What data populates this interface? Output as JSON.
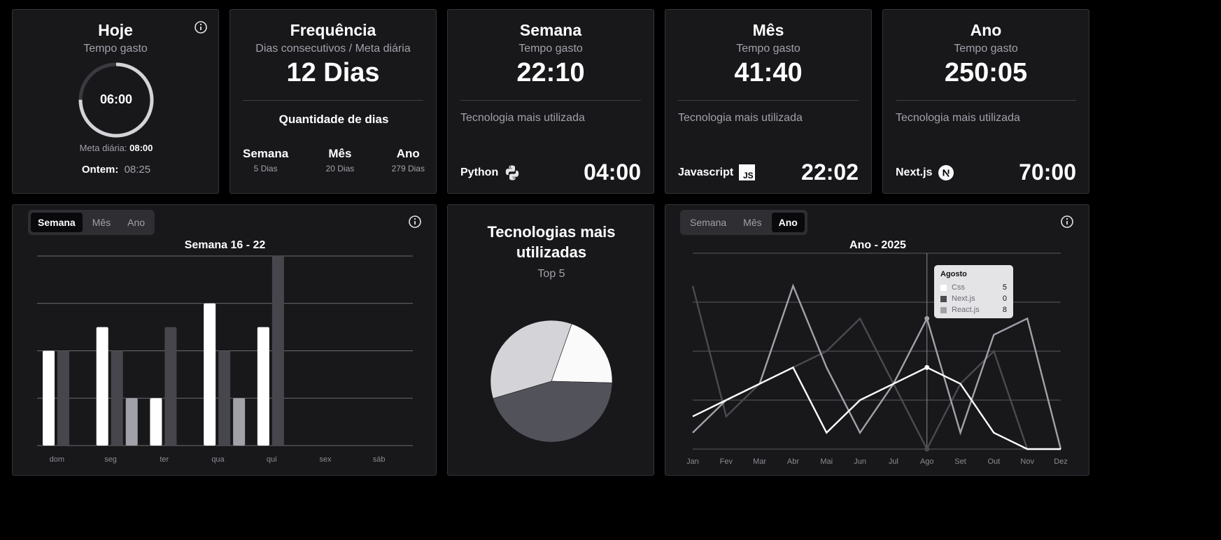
{
  "today": {
    "title": "Hoje",
    "subtitle": "Tempo gasto",
    "time": "06:00",
    "progress": 0.75,
    "goal_label": "Meta diária:",
    "goal_value": "08:00",
    "yesterday_label": "Ontem:",
    "yesterday_value": "08:25"
  },
  "frequency": {
    "title": "Frequência",
    "subtitle": "Dias consecutivos / Meta diária",
    "value": "12 Dias",
    "section_title": "Quantidade de dias",
    "items": [
      {
        "label": "Semana",
        "value": "5 Dias"
      },
      {
        "label": "Mês",
        "value": "20 Dias"
      },
      {
        "label": "Ano",
        "value": "279 Dias"
      }
    ]
  },
  "week": {
    "title": "Semana",
    "subtitle": "Tempo gasto",
    "value": "22:10",
    "tech_label": "Tecnologia mais utilizada",
    "tech_name": "Python",
    "tech_icon": "python-icon",
    "tech_time": "04:00"
  },
  "month": {
    "title": "Mês",
    "subtitle": "Tempo gasto",
    "value": "41:40",
    "tech_label": "Tecnologia mais utilizada",
    "tech_name": "Javascript",
    "tech_icon": "javascript-icon",
    "tech_time": "22:02"
  },
  "year": {
    "title": "Ano",
    "subtitle": "Tempo gasto",
    "value": "250:05",
    "tech_label": "Tecnologia mais utilizada",
    "tech_name": "Next.js",
    "tech_icon": "nextjs-icon",
    "tech_time": "70:00"
  },
  "bar_panel": {
    "tabs": [
      "Semana",
      "Mês",
      "Ano"
    ],
    "active_tab": 0
  },
  "pie_panel": {
    "title_line1": "Tecnologias mais",
    "title_line2": "utilizadas",
    "subtitle": "Top 5"
  },
  "line_panel": {
    "tabs": [
      "Semana",
      "Mês",
      "Ano"
    ],
    "active_tab": 2,
    "tooltip": {
      "title": "Agosto",
      "rows": [
        {
          "name": "Css",
          "value": "5",
          "color": "#ffffff"
        },
        {
          "name": "Next.js",
          "value": "0",
          "color": "#4a4a50"
        },
        {
          "name": "React.js",
          "value": "8",
          "color": "#a1a1aa"
        }
      ]
    }
  },
  "chart_data": [
    {
      "type": "bar",
      "title": "Semana 16 - 22",
      "categories": [
        "dom",
        "seg",
        "ter",
        "qua",
        "qui",
        "sex",
        "sáb"
      ],
      "ylim": [
        0,
        8
      ],
      "grid": true,
      "series": [
        {
          "values": [
            4,
            5,
            2,
            6,
            5,
            0,
            0
          ],
          "color": "#ffffff"
        },
        {
          "values": [
            4,
            4,
            5,
            4,
            8,
            0,
            0
          ],
          "color": "#46464c"
        },
        {
          "values": [
            0,
            2,
            0,
            2,
            0,
            0,
            0
          ],
          "color": "#a1a1aa"
        }
      ]
    },
    {
      "type": "pie",
      "slices": [
        {
          "value": 20,
          "color": "#fafafa"
        },
        {
          "value": 45,
          "color": "#52525b"
        },
        {
          "value": 35,
          "color": "#d4d4d8"
        }
      ]
    },
    {
      "type": "line",
      "title": "Ano - 2025",
      "x": [
        "Jan",
        "Fev",
        "Mar",
        "Abr",
        "Mai",
        "Jun",
        "Jul",
        "Ago",
        "Set",
        "Out",
        "Nov",
        "Dez"
      ],
      "ylim": [
        0,
        12
      ],
      "grid": true,
      "highlight_index": 7,
      "series": [
        {
          "name": "Css",
          "color": "#ffffff",
          "values": [
            2,
            3,
            4,
            5,
            1,
            3,
            4,
            5,
            4,
            1,
            0,
            0
          ]
        },
        {
          "name": "Next.js",
          "color": "#4a4a50",
          "values": [
            10,
            2,
            4,
            5,
            6,
            8,
            4,
            0,
            4,
            6,
            0,
            0
          ]
        },
        {
          "name": "React.js",
          "color": "#a1a1aa",
          "values": [
            1,
            3,
            4,
            10,
            5,
            1,
            4,
            8,
            1,
            7,
            8,
            0
          ]
        }
      ]
    }
  ]
}
